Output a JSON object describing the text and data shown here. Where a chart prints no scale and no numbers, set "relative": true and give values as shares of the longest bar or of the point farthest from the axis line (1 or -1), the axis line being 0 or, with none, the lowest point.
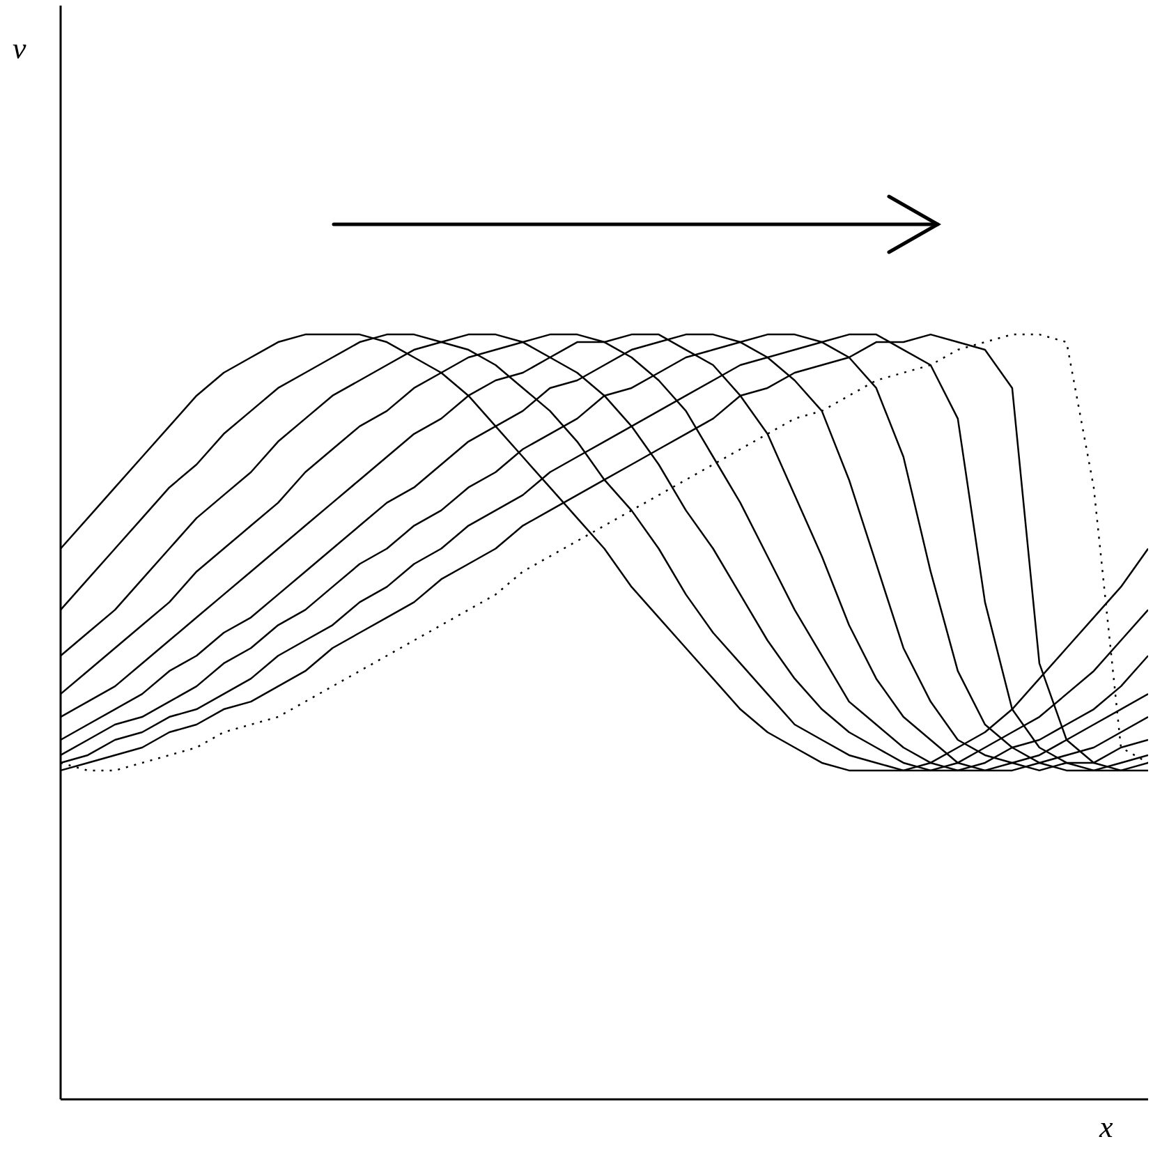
{
  "chart_data": {
    "type": "line",
    "relative": true,
    "xlabel": "x",
    "annotations": [
      "v"
    ],
    "marker": "none",
    "categories": [
      null,
      null,
      null,
      null,
      null,
      null,
      null,
      null,
      null,
      null,
      null,
      null,
      null,
      null,
      null,
      null,
      null,
      null,
      null,
      null,
      null,
      null,
      null,
      null,
      null,
      null,
      null,
      null,
      null,
      null,
      null,
      null,
      null,
      null,
      null,
      null,
      null,
      null,
      null,
      null,
      null
    ],
    "series": [
      {
        "color": "#000000",
        "line_style": "solid",
        "values": [
          0.72,
          0.76,
          0.8,
          0.84,
          0.88,
          0.92,
          0.95,
          0.97,
          0.99,
          1,
          1,
          1,
          0.99,
          0.97,
          0.95,
          0.92,
          0.88,
          0.84,
          0.8,
          0.76,
          0.72,
          0.67,
          0.63,
          0.59,
          0.55,
          0.51,
          0.48,
          0.46,
          0.44,
          0.43,
          0.43,
          0.43,
          0.44,
          0.46,
          0.48,
          0.51,
          0.55,
          0.59,
          0.63,
          0.67,
          0.72
        ]
      },
      {
        "color": "#000000",
        "line_style": "solid",
        "values": [
          0.64,
          0.68,
          0.72,
          0.76,
          0.8,
          0.83,
          0.87,
          0.9,
          0.93,
          0.95,
          0.97,
          0.99,
          1,
          1,
          0.99,
          0.98,
          0.96,
          0.93,
          0.9,
          0.86,
          0.81,
          0.77,
          0.72,
          0.66,
          0.61,
          0.57,
          0.53,
          0.49,
          0.47,
          0.45,
          0.44,
          0.43,
          0.43,
          0.44,
          0.46,
          0.48,
          0.5,
          0.53,
          0.56,
          0.6,
          0.64
        ]
      },
      {
        "color": "#000000",
        "line_style": "solid",
        "values": [
          0.58,
          0.61,
          0.64,
          0.68,
          0.72,
          0.76,
          0.79,
          0.82,
          0.86,
          0.89,
          0.92,
          0.94,
          0.96,
          0.98,
          0.99,
          1,
          1,
          0.99,
          0.97,
          0.95,
          0.92,
          0.88,
          0.83,
          0.77,
          0.72,
          0.66,
          0.6,
          0.55,
          0.51,
          0.48,
          0.46,
          0.44,
          0.43,
          0.43,
          0.44,
          0.46,
          0.47,
          0.49,
          0.51,
          0.54,
          0.58
        ]
      },
      {
        "color": "#000000",
        "line_style": "solid",
        "values": [
          0.53,
          0.56,
          0.59,
          0.62,
          0.65,
          0.69,
          0.72,
          0.75,
          0.78,
          0.82,
          0.85,
          0.88,
          0.9,
          0.93,
          0.95,
          0.97,
          0.98,
          0.99,
          1,
          1,
          0.99,
          0.97,
          0.94,
          0.9,
          0.84,
          0.78,
          0.71,
          0.64,
          0.58,
          0.52,
          0.49,
          0.46,
          0.44,
          0.43,
          0.43,
          0.44,
          0.45,
          0.47,
          0.49,
          0.51,
          0.53
        ]
      },
      {
        "color": "#000000",
        "line_style": "solid",
        "values": [
          0.5,
          0.52,
          0.54,
          0.57,
          0.6,
          0.63,
          0.66,
          0.69,
          0.72,
          0.75,
          0.78,
          0.81,
          0.84,
          0.87,
          0.89,
          0.92,
          0.94,
          0.95,
          0.97,
          0.99,
          0.99,
          1,
          1,
          0.98,
          0.96,
          0.92,
          0.87,
          0.79,
          0.71,
          0.62,
          0.55,
          0.5,
          0.47,
          0.44,
          0.43,
          0.43,
          0.44,
          0.45,
          0.46,
          0.48,
          0.5
        ]
      },
      {
        "color": "#000000",
        "line_style": "solid",
        "values": [
          0.47,
          0.49,
          0.51,
          0.53,
          0.56,
          0.58,
          0.61,
          0.63,
          0.66,
          0.69,
          0.72,
          0.75,
          0.78,
          0.8,
          0.83,
          0.86,
          0.88,
          0.9,
          0.93,
          0.94,
          0.96,
          0.98,
          0.99,
          1,
          1,
          0.99,
          0.97,
          0.94,
          0.9,
          0.81,
          0.7,
          0.59,
          0.52,
          0.47,
          0.45,
          0.44,
          0.43,
          0.44,
          0.44,
          0.46,
          0.47
        ]
      },
      {
        "color": "#000000",
        "line_style": "solid",
        "values": [
          0.45,
          0.47,
          0.49,
          0.5,
          0.52,
          0.54,
          0.57,
          0.59,
          0.62,
          0.64,
          0.67,
          0.7,
          0.72,
          0.75,
          0.77,
          0.8,
          0.82,
          0.85,
          0.87,
          0.89,
          0.92,
          0.93,
          0.95,
          0.97,
          0.98,
          0.99,
          1,
          1,
          0.99,
          0.97,
          0.93,
          0.84,
          0.69,
          0.56,
          0.49,
          0.46,
          0.44,
          0.43,
          0.43,
          0.44,
          0.45
        ]
      },
      {
        "color": "#000000",
        "line_style": "solid",
        "values": [
          0.44,
          0.45,
          0.47,
          0.48,
          0.5,
          0.51,
          0.53,
          0.55,
          0.58,
          0.6,
          0.62,
          0.65,
          0.67,
          0.7,
          0.72,
          0.75,
          0.77,
          0.79,
          0.82,
          0.84,
          0.86,
          0.88,
          0.9,
          0.92,
          0.94,
          0.96,
          0.97,
          0.98,
          0.99,
          1,
          1,
          0.98,
          0.96,
          0.89,
          0.65,
          0.51,
          0.46,
          0.44,
          0.43,
          0.43,
          0.44
        ]
      },
      {
        "color": "#000000",
        "line_style": "solid",
        "values": [
          0.43,
          0.44,
          0.45,
          0.46,
          0.48,
          0.49,
          0.51,
          0.52,
          0.54,
          0.56,
          0.59,
          0.61,
          0.63,
          0.65,
          0.68,
          0.7,
          0.72,
          0.75,
          0.77,
          0.79,
          0.81,
          0.83,
          0.85,
          0.87,
          0.89,
          0.92,
          0.93,
          0.95,
          0.96,
          0.97,
          0.99,
          0.99,
          1,
          0.99,
          0.98,
          0.93,
          0.57,
          0.47,
          0.44,
          0.43,
          0.43
        ]
      },
      {
        "color": "#000000",
        "line_style": "dotted",
        "values": [
          0.44,
          0.43,
          0.43,
          0.44,
          0.45,
          0.46,
          0.48,
          0.49,
          0.5,
          0.52,
          0.54,
          0.56,
          0.58,
          0.6,
          0.62,
          0.64,
          0.66,
          0.69,
          0.71,
          0.73,
          0.75,
          0.77,
          0.79,
          0.81,
          0.83,
          0.85,
          0.87,
          0.89,
          0.9,
          0.92,
          0.94,
          0.95,
          0.96,
          0.98,
          0.99,
          1,
          1,
          0.99,
          0.8,
          0.46,
          0.44
        ]
      }
    ]
  }
}
